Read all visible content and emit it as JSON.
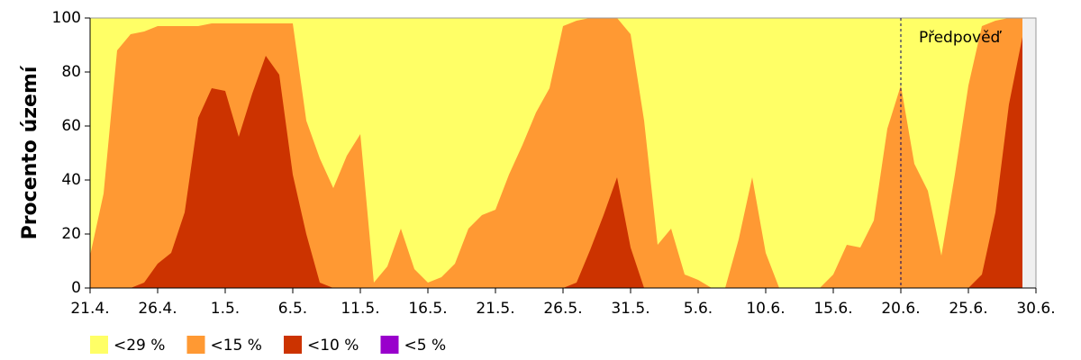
{
  "chart_data": {
    "type": "area",
    "ylabel": "Procento území",
    "categories": [
      "21.4.",
      null,
      null,
      null,
      null,
      "26.4.",
      null,
      null,
      null,
      null,
      "1.5.",
      null,
      null,
      null,
      null,
      "6.5.",
      null,
      null,
      null,
      null,
      "11.5.",
      null,
      null,
      null,
      null,
      "16.5.",
      null,
      null,
      null,
      null,
      "21.5.",
      null,
      null,
      null,
      null,
      "26.5.",
      null,
      null,
      null,
      null,
      "31.5.",
      null,
      null,
      null,
      null,
      "5.6.",
      null,
      null,
      null,
      null,
      "10.6.",
      null,
      null,
      null,
      null,
      "15.6.",
      null,
      null,
      null,
      null,
      "20.6.",
      null,
      null,
      null,
      null,
      "25.6.",
      null,
      null,
      null,
      null,
      "30.6."
    ],
    "series": [
      {
        "name": "<29 %",
        "color": "#ffff66",
        "values": [
          100,
          100,
          100,
          100,
          100,
          100,
          100,
          100,
          100,
          100,
          100,
          100,
          100,
          100,
          100,
          100,
          100,
          100,
          100,
          100,
          100,
          100,
          100,
          100,
          100,
          100,
          100,
          100,
          100,
          100,
          100,
          100,
          100,
          100,
          100,
          100,
          100,
          100,
          100,
          100,
          100,
          100,
          100,
          100,
          100,
          100,
          100,
          100,
          100,
          100,
          100,
          100,
          100,
          100,
          100,
          100,
          100,
          100,
          100,
          100,
          100,
          100,
          100,
          100,
          100,
          100,
          100,
          100,
          100,
          100,
          null
        ]
      },
      {
        "name": "<15 %",
        "color": "#ff9933",
        "values": [
          12,
          35,
          88,
          94,
          95,
          97,
          97,
          97,
          97,
          98,
          98,
          98,
          98,
          98,
          98,
          98,
          62,
          48,
          37,
          49,
          57,
          2,
          8,
          22,
          7,
          2,
          4,
          9,
          22,
          27,
          29,
          42,
          53,
          65,
          74,
          97,
          99,
          100,
          100,
          100,
          94,
          62,
          16,
          22,
          5,
          3,
          0,
          0,
          18,
          41,
          13,
          0,
          0,
          0,
          0,
          5,
          16,
          15,
          25,
          59,
          75,
          46,
          36,
          12,
          42,
          75,
          97,
          99,
          100,
          100,
          null
        ]
      },
      {
        "name": "<10 %",
        "color": "#cc3300",
        "values": [
          0,
          0,
          0,
          0,
          2,
          9,
          13,
          28,
          63,
          74,
          73,
          56,
          72,
          86,
          79,
          42,
          20,
          2,
          0,
          0,
          0,
          0,
          0,
          0,
          0,
          0,
          0,
          0,
          0,
          0,
          0,
          0,
          0,
          0,
          0,
          0,
          2,
          14,
          27,
          41,
          15,
          0,
          0,
          0,
          0,
          0,
          0,
          0,
          0,
          0,
          0,
          0,
          0,
          0,
          0,
          0,
          0,
          0,
          0,
          0,
          0,
          0,
          0,
          0,
          0,
          0,
          5,
          28,
          68,
          93,
          null
        ]
      },
      {
        "name": "<5 %",
        "color": "#9900cc",
        "values": [
          0,
          0,
          0,
          0,
          0,
          0,
          0,
          0,
          0,
          0,
          0,
          0,
          0,
          0,
          0,
          0,
          0,
          0,
          0,
          0,
          0,
          0,
          0,
          0,
          0,
          0,
          0,
          0,
          0,
          0,
          0,
          0,
          0,
          0,
          0,
          0,
          0,
          0,
          0,
          0,
          0,
          0,
          0,
          0,
          0,
          0,
          0,
          0,
          0,
          0,
          0,
          0,
          0,
          0,
          0,
          0,
          0,
          0,
          0,
          0,
          0,
          0,
          0,
          0,
          0,
          0,
          0,
          0,
          0,
          0,
          null
        ]
      }
    ],
    "ylim": [
      0,
      100
    ],
    "yticks": [
      0,
      20,
      40,
      60,
      80,
      100
    ],
    "annotation": {
      "text": "Předpověď",
      "x": "20.6."
    }
  }
}
